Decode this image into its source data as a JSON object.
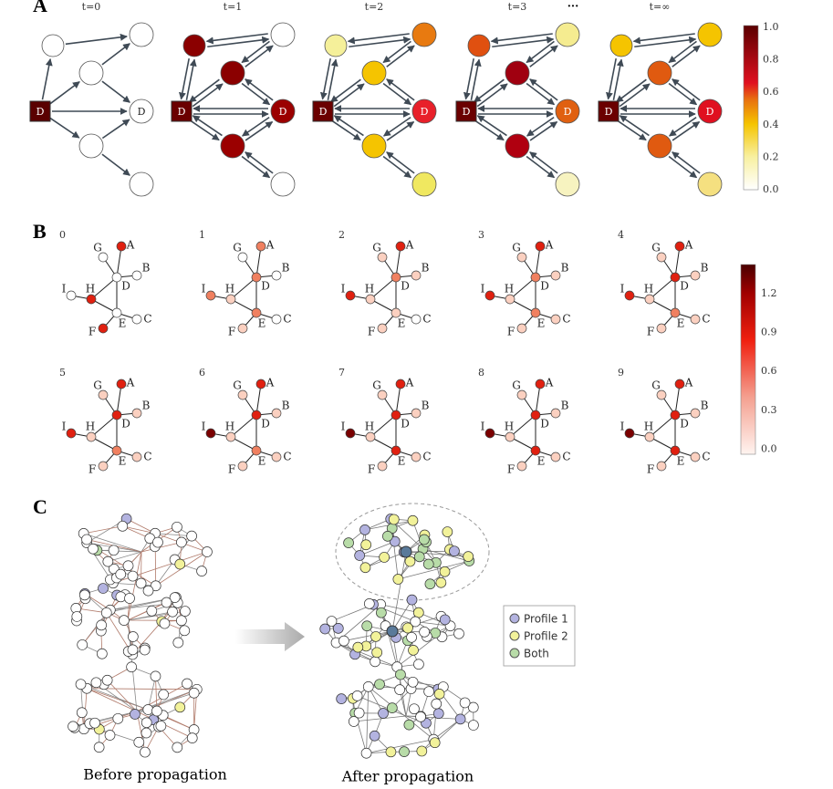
{
  "panel_a": {
    "label": "A",
    "columns": [
      "t=0",
      "t=1",
      "t=2",
      "t=3",
      "t=∞"
    ],
    "ellipsis": "···",
    "node_label": "D",
    "colorbar_ticks": [
      "1.0",
      "0.8",
      "0.6",
      "0.4",
      "0.2",
      "0.0"
    ]
  },
  "panel_b": {
    "label": "B",
    "steps": [
      "0",
      "1",
      "2",
      "3",
      "4",
      "5",
      "6",
      "7",
      "8",
      "9"
    ],
    "node_labels": [
      "A",
      "B",
      "C",
      "D",
      "E",
      "F",
      "G",
      "H",
      "I"
    ],
    "colorbar_ticks": [
      "1.2",
      "0.9",
      "0.6",
      "0.3",
      "0.0"
    ]
  },
  "panel_c": {
    "label": "C",
    "legend": [
      "Profile 1",
      "Profile 2",
      "Both"
    ],
    "captions": [
      "Before propagation",
      "After propagation"
    ]
  }
}
